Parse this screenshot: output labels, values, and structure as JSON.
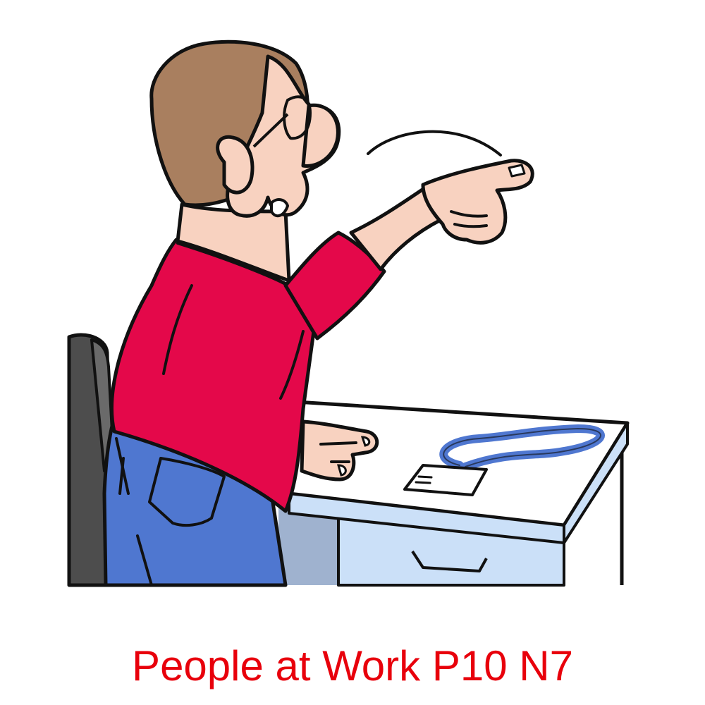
{
  "caption": {
    "text": "People at Work P10 N7",
    "color": "#e8000b"
  },
  "illustration": {
    "subject": "office worker pointing",
    "colors": {
      "outline": "#111111",
      "skin": "#f8d2c0",
      "hair": "#a97f5f",
      "shirt": "#e4084a",
      "jeans": "#4f77d0",
      "chair": "#4d4d4d",
      "desk_top": "#ffffff",
      "desk_side": "#cbe0f8",
      "desk_shadow": "#9fb2cf",
      "lanyard": "#4f77d0",
      "badge": "#ffffff"
    }
  }
}
